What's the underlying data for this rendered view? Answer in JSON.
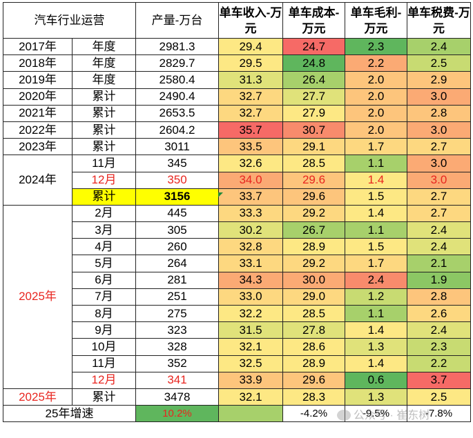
{
  "header": {
    "col1": "汽车行业运营",
    "col3": "产量-万台",
    "col4": "单车收入-万元",
    "col5": "单车成本-万元",
    "col6": "单车毛利-万元",
    "col7": "单车税费-万元"
  },
  "rows": [
    {
      "year": "2017年",
      "period": "年度",
      "output": "2981.3",
      "income": "29.4",
      "cost": "24.7",
      "margin": "2.3",
      "tax": "2.4"
    },
    {
      "year": "2018年",
      "period": "年度",
      "output": "2829.7",
      "income": "29.5",
      "cost": "24.8",
      "margin": "2.2",
      "tax": "2.5"
    },
    {
      "year": "2019年",
      "period": "年度",
      "output": "2580.4",
      "income": "31.3",
      "cost": "26.4",
      "margin": "2.0",
      "tax": "2.9"
    },
    {
      "year": "2020年",
      "period": "累计",
      "output": "2490.4",
      "income": "32.7",
      "cost": "27.7",
      "margin": "2.0",
      "tax": "3.0"
    },
    {
      "year": "2021年",
      "period": "累计",
      "output": "2653.5",
      "income": "32.7",
      "cost": "27.9",
      "margin": "2.0",
      "tax": "2.8"
    },
    {
      "year": "2022年",
      "period": "累计",
      "output": "2604.2",
      "income": "35.7",
      "cost": "30.7",
      "margin": "2.0",
      "tax": "3.0"
    },
    {
      "year": "2023年",
      "period": "累计",
      "output": "3011",
      "income": "33.5",
      "cost": "29.1",
      "margin": "1.7",
      "tax": "2.7"
    }
  ],
  "group2024": {
    "year": "2024年",
    "rows": [
      {
        "period": "11月",
        "output": "345",
        "income": "32.6",
        "cost": "28.5",
        "margin": "1.1",
        "tax": "3.0"
      },
      {
        "period": "12月",
        "output": "350",
        "income": "34.0",
        "cost": "29.6",
        "margin": "1.4",
        "tax": "3.0"
      },
      {
        "period": "累计",
        "output": "3156",
        "income": "33.7",
        "cost": "29.6",
        "margin": "1.5",
        "tax": "2.7"
      }
    ]
  },
  "group2025": {
    "year": "2025年",
    "rows": [
      {
        "period": "2月",
        "output": "445",
        "income": "33.3",
        "cost": "29.2",
        "margin": "1.4",
        "tax": "2.7"
      },
      {
        "period": "3月",
        "output": "305",
        "income": "30.2",
        "cost": "26.7",
        "margin": "1.1",
        "tax": "2.4"
      },
      {
        "period": "4月",
        "output": "260",
        "income": "32.8",
        "cost": "28.9",
        "margin": "1.5",
        "tax": "2.4"
      },
      {
        "period": "5月",
        "output": "264",
        "income": "33.1",
        "cost": "29.2",
        "margin": "1.7",
        "tax": "2.1"
      },
      {
        "period": "6月",
        "output": "281",
        "income": "34.3",
        "cost": "30.0",
        "margin": "2.4",
        "tax": "1.9"
      },
      {
        "period": "7月",
        "output": "251",
        "income": "33.0",
        "cost": "29.0",
        "margin": "1.2",
        "tax": "2.8"
      },
      {
        "period": "8月",
        "output": "275",
        "income": "32.2",
        "cost": "28.5",
        "margin": "1.1",
        "tax": "2.6"
      },
      {
        "period": "9月",
        "output": "323",
        "income": "31.5",
        "cost": "27.8",
        "margin": "1.4",
        "tax": "2.4"
      },
      {
        "period": "10月",
        "output": "328",
        "income": "32.1",
        "cost": "28.6",
        "margin": "1.3",
        "tax": "2.3"
      },
      {
        "period": "11月",
        "output": "352",
        "income": "32.5",
        "cost": "28.9",
        "margin": "1.4",
        "tax": "2.2"
      },
      {
        "period": "12月",
        "output": "341",
        "income": "33.9",
        "cost": "29.6",
        "margin": "0.6",
        "tax": "3.7"
      }
    ]
  },
  "total2025": {
    "year": "2025年",
    "period": "累计",
    "output": "3478",
    "income": "32.1",
    "cost": "28.3",
    "margin": "1.3",
    "tax": "2.5"
  },
  "growth": {
    "label": "25年增速",
    "output": "10.2%",
    "income": "",
    "cost": "-4.2%",
    "margin": "-9.5%",
    "tax": "-7.8%"
  },
  "colors": {
    "c00": "#5fb65d",
    "c02": "#8cc764",
    "c04": "#a7d06b",
    "c06": "#c8db72",
    "c08": "#e0e27a",
    "c10": "#fde884",
    "c12": "#fdd880",
    "c14": "#fdc57c",
    "c16": "#fbaa74",
    "c18": "#f88b6c",
    "c20": "#f66a66",
    "highlight_yellow": "#ffff00",
    "red_text": "#e8251f"
  },
  "watermark": "公众号 · 崔东树"
}
